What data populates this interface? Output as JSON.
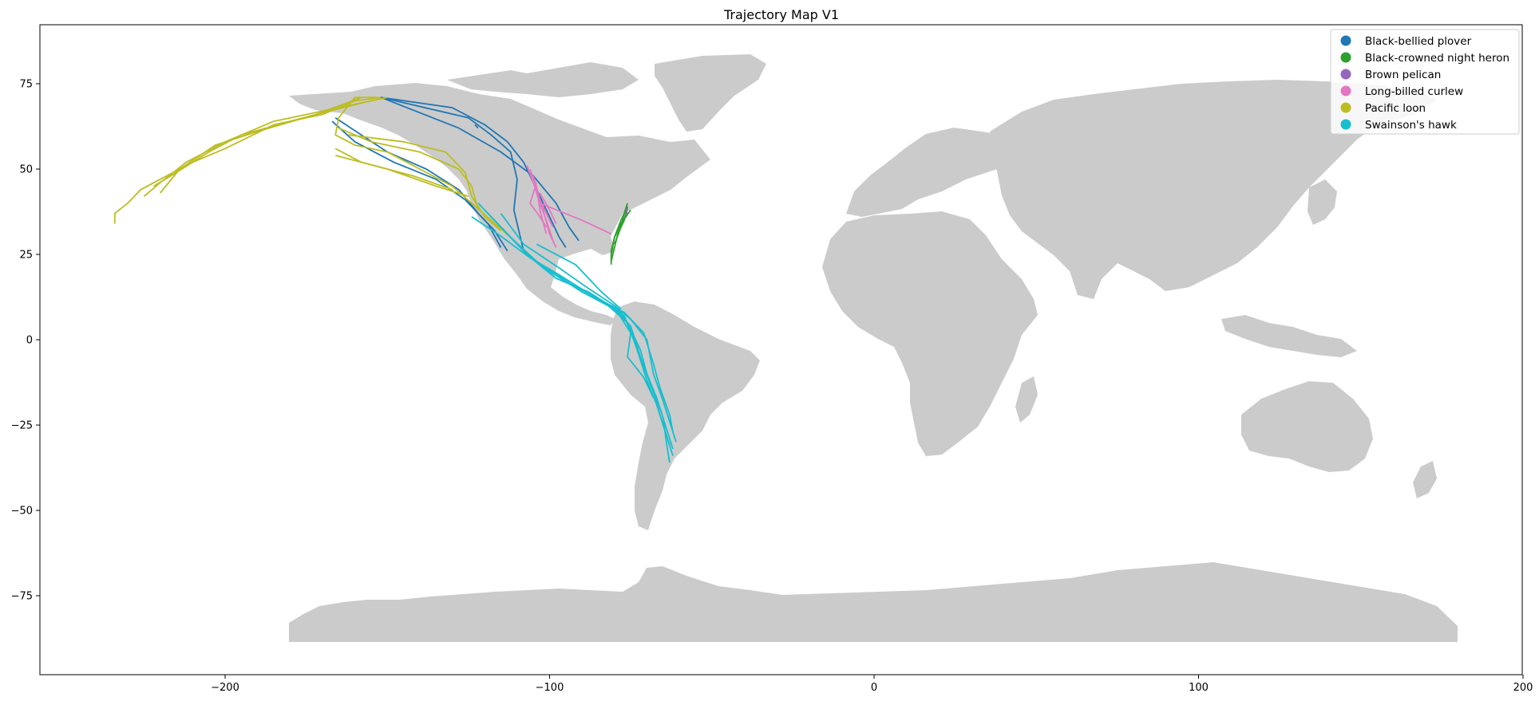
{
  "title": "Trajectory Map V1",
  "colors": {
    "land": "#cbcbcb",
    "axes_frame": "#000000",
    "background": "#ffffff"
  },
  "chart_data": {
    "type": "line",
    "title": "Trajectory Map V1",
    "xlabel": "",
    "ylabel": "",
    "xlim": [
      -258,
      200
    ],
    "ylim": [
      -98,
      93
    ],
    "x_ticks": [
      -200,
      -100,
      0,
      100,
      200
    ],
    "y_ticks": [
      75,
      50,
      25,
      0,
      -25,
      -50,
      -75
    ],
    "grid": false,
    "legend_position": "top-right",
    "background_layer": "world land polygons (lon/lat, light gray)",
    "series": [
      {
        "name": "Black-bellied plover",
        "color": "#1f77b4",
        "lines": [
          [
            [
              -152,
              71
            ],
            [
              -130,
              68
            ],
            [
              -120,
              63
            ],
            [
              -113,
              58
            ],
            [
              -108,
              52
            ],
            [
              -102,
              40
            ],
            [
              -97,
              30
            ],
            [
              -95,
              27
            ]
          ],
          [
            [
              -152,
              71
            ],
            [
              -125,
              65
            ],
            [
              -118,
              60
            ],
            [
              -112,
              55
            ],
            [
              -110,
              47
            ],
            [
              -111,
              38
            ],
            [
              -109,
              30
            ],
            [
              -108,
              26
            ]
          ],
          [
            [
              -152,
              71
            ],
            [
              -128,
              62
            ],
            [
              -115,
              55
            ],
            [
              -105,
              48
            ],
            [
              -98,
              40
            ],
            [
              -94,
              33
            ],
            [
              -91,
              29
            ]
          ],
          [
            [
              -166,
              65
            ],
            [
              -158,
              60
            ],
            [
              -150,
              55
            ],
            [
              -138,
              50
            ],
            [
              -128,
              44
            ],
            [
              -122,
              37
            ],
            [
              -117,
              32
            ],
            [
              -113,
              26
            ]
          ],
          [
            [
              -167,
              64
            ],
            [
              -160,
              58
            ],
            [
              -148,
              52
            ],
            [
              -135,
              47
            ],
            [
              -126,
              41
            ],
            [
              -119,
              34
            ],
            [
              -115,
              27
            ]
          ],
          [
            [
              -123,
              63
            ],
            [
              -122,
              62
            ]
          ]
        ]
      },
      {
        "name": "Black-crowned night heron",
        "color": "#2ca02c",
        "lines": [
          [
            [
              -76,
              39
            ],
            [
              -78,
              35
            ],
            [
              -80,
              30
            ],
            [
              -81,
              26
            ],
            [
              -81,
              22
            ]
          ],
          [
            [
              -76,
              39
            ],
            [
              -77,
              35
            ],
            [
              -79,
              31
            ],
            [
              -80,
              27
            ],
            [
              -81,
              23
            ]
          ],
          [
            [
              -75,
              38
            ],
            [
              -78,
              34
            ],
            [
              -80,
              30
            ],
            [
              -81,
              25
            ]
          ],
          [
            [
              -76,
              40
            ],
            [
              -77,
              37
            ],
            [
              -78,
              33
            ],
            [
              -80,
              28
            ]
          ]
        ]
      },
      {
        "name": "Brown pelican",
        "color": "#9467bd",
        "lines": [
          [
            [
              -76,
              38.5
            ],
            [
              -76.2,
              37.5
            ],
            [
              -76.1,
              36.5
            ]
          ]
        ]
      },
      {
        "name": "Long-billed curlew",
        "color": "#e377c2",
        "lines": [
          [
            [
              -107,
              51
            ],
            [
              -105,
              46
            ],
            [
              -103,
              40
            ],
            [
              -101,
              35
            ],
            [
              -99,
              29
            ]
          ],
          [
            [
              -106,
              50
            ],
            [
              -104,
              44
            ],
            [
              -102,
              38
            ],
            [
              -100,
              31
            ],
            [
              -98,
              27
            ]
          ],
          [
            [
              -105,
              48
            ],
            [
              -103,
              41
            ],
            [
              -101,
              37
            ],
            [
              -99,
              33
            ]
          ],
          [
            [
              -104,
              46
            ],
            [
              -106,
              40
            ],
            [
              -103,
              36
            ],
            [
              -101,
              33
            ]
          ],
          [
            [
              -103,
              43
            ],
            [
              -100,
              38
            ],
            [
              -98,
              34
            ]
          ],
          [
            [
              -103,
              40
            ],
            [
              -90,
              35
            ],
            [
              -81,
              31
            ]
          ],
          [
            [
              -104,
              45
            ],
            [
              -103,
              38
            ],
            [
              -101,
              31
            ]
          ]
        ]
      },
      {
        "name": "Pacific loon",
        "color": "#bcbd22",
        "lines": [
          [
            [
              -152,
              71
            ],
            [
              -160,
              70
            ],
            [
              -170,
              66
            ],
            [
              -185,
              63
            ],
            [
              -200,
              56
            ],
            [
              -210,
              52
            ],
            [
              -218,
              48
            ],
            [
              -226,
              44
            ],
            [
              -230,
              40
            ],
            [
              -234,
              37
            ],
            [
              -234,
              34
            ]
          ],
          [
            [
              -155,
              70
            ],
            [
              -168,
              67
            ],
            [
              -180,
              64
            ],
            [
              -195,
              60
            ],
            [
              -205,
              55
            ],
            [
              -215,
              49
            ],
            [
              -222,
              45
            ]
          ],
          [
            [
              -150,
              71
            ],
            [
              -165,
              68
            ],
            [
              -185,
              64
            ],
            [
              -200,
              58
            ],
            [
              -212,
              52
            ],
            [
              -220,
              46
            ],
            [
              -225,
              42
            ]
          ],
          [
            [
              -158,
              71
            ],
            [
              -172,
              66
            ],
            [
              -190,
              61
            ],
            [
              -203,
              57
            ],
            [
              -214,
              50
            ],
            [
              -220,
              43
            ]
          ],
          [
            [
              -153,
              71
            ],
            [
              -160,
              71
            ],
            [
              -165,
              65
            ],
            [
              -166,
              60
            ],
            [
              -160,
              57
            ],
            [
              -150,
              55
            ],
            [
              -140,
              50
            ],
            [
              -130,
              45
            ],
            [
              -124,
              40
            ],
            [
              -118,
              35
            ],
            [
              -112,
              30
            ]
          ],
          [
            [
              -165,
              62
            ],
            [
              -155,
              58
            ],
            [
              -140,
              55
            ],
            [
              -128,
              50
            ],
            [
              -124,
              45
            ],
            [
              -122,
              38
            ]
          ],
          [
            [
              -166,
              54
            ],
            [
              -150,
              50
            ],
            [
              -135,
              45
            ],
            [
              -125,
              42
            ]
          ],
          [
            [
              -162,
              60
            ],
            [
              -145,
              58
            ],
            [
              -132,
              55
            ],
            [
              -126,
              49
            ],
            [
              -124,
              42
            ],
            [
              -120,
              36
            ],
            [
              -115,
              32
            ]
          ],
          [
            [
              -166,
              56
            ],
            [
              -158,
              52
            ],
            [
              -142,
              48
            ],
            [
              -130,
              44
            ]
          ]
        ]
      },
      {
        "name": "Swainson's hawk",
        "color": "#17becf",
        "lines": [
          [
            [
              -122,
              40
            ],
            [
              -115,
              33
            ],
            [
              -107,
              25
            ],
            [
              -98,
              18
            ],
            [
              -88,
              14
            ],
            [
              -78,
              8
            ],
            [
              -75,
              3
            ],
            [
              -72,
              -3
            ],
            [
              -70,
              -10
            ],
            [
              -67,
              -17
            ],
            [
              -65,
              -23
            ],
            [
              -64,
              -30
            ],
            [
              -63,
              -36
            ]
          ],
          [
            [
              -120,
              38
            ],
            [
              -112,
              30
            ],
            [
              -104,
              23
            ],
            [
              -95,
              17
            ],
            [
              -85,
              12
            ],
            [
              -77,
              7
            ],
            [
              -74,
              0
            ],
            [
              -71,
              -8
            ],
            [
              -68,
              -15
            ],
            [
              -66,
              -22
            ],
            [
              -64,
              -28
            ],
            [
              -62,
              -34
            ]
          ],
          [
            [
              -118,
              36
            ],
            [
              -110,
              28
            ],
            [
              -102,
              21
            ],
            [
              -92,
              16
            ],
            [
              -82,
              10
            ],
            [
              -76,
              5
            ],
            [
              -73,
              -3
            ],
            [
              -70,
              -12
            ],
            [
              -67,
              -19
            ],
            [
              -65,
              -25
            ],
            [
              -63,
              -31
            ]
          ],
          [
            [
              -116,
              34
            ],
            [
              -108,
              26
            ],
            [
              -100,
              20
            ],
            [
              -90,
              14
            ],
            [
              -80,
              9
            ],
            [
              -75,
              4
            ],
            [
              -72,
              -5
            ],
            [
              -69,
              -13
            ],
            [
              -66,
              -20
            ],
            [
              -64,
              -26
            ],
            [
              -62,
              -32
            ]
          ],
          [
            [
              -124,
              36
            ],
            [
              -116,
              31
            ],
            [
              -106,
              24
            ],
            [
              -97,
              19
            ],
            [
              -87,
              13
            ],
            [
              -77,
              8
            ],
            [
              -71,
              2
            ],
            [
              -68,
              -7
            ],
            [
              -66,
              -14
            ],
            [
              -63,
              -22
            ],
            [
              -62,
              -27
            ]
          ],
          [
            [
              -115,
              37
            ],
            [
              -108,
              28
            ],
            [
              -97,
              21
            ],
            [
              -88,
              15
            ],
            [
              -80,
              10
            ],
            [
              -75,
              6
            ],
            [
              -70,
              0
            ],
            [
              -68,
              -10
            ],
            [
              -65,
              -18
            ],
            [
              -63,
              -24
            ],
            [
              -61,
              -30
            ]
          ],
          [
            [
              -104,
              28
            ],
            [
              -92,
              22
            ],
            [
              -84,
              14
            ],
            [
              -78,
              9
            ]
          ],
          [
            [
              -79,
              8
            ],
            [
              -75,
              2
            ],
            [
              -76,
              -5
            ],
            [
              -71,
              -11
            ],
            [
              -68,
              -17
            ]
          ]
        ]
      }
    ]
  }
}
